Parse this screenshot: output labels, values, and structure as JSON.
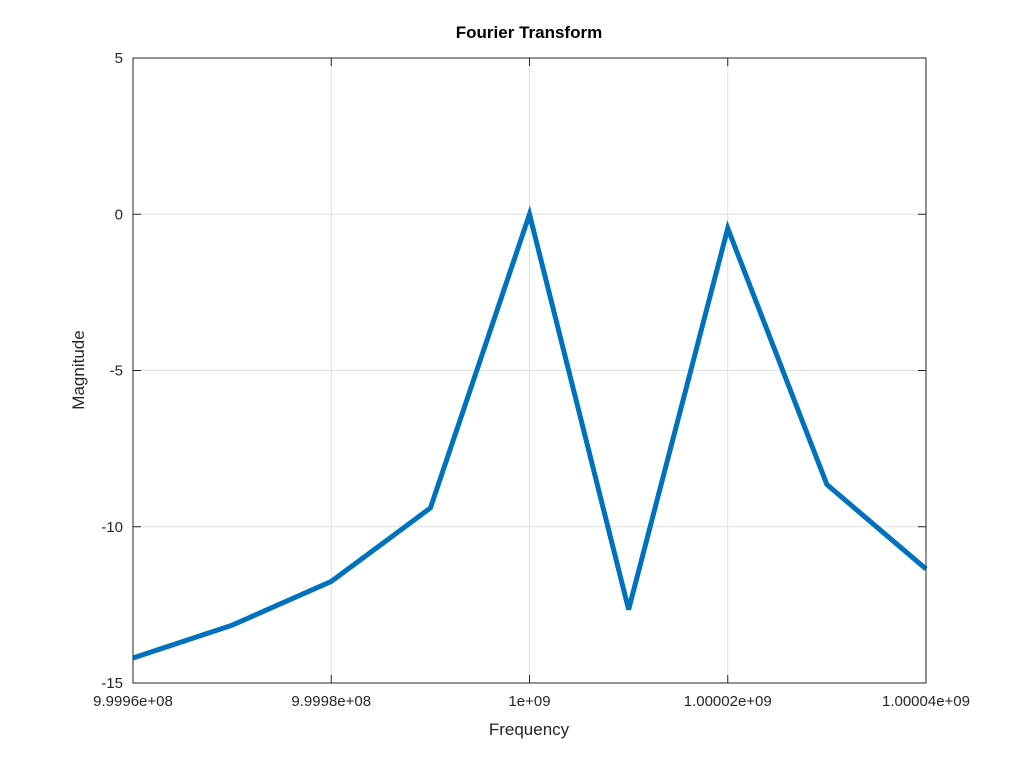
{
  "chart_data": {
    "type": "line",
    "title": "Fourier Transform",
    "xlabel": "Frequency",
    "ylabel": "Magnitude",
    "xlim": [
      999960000,
      1000040000
    ],
    "ylim": [
      -15,
      5
    ],
    "xticks": [
      999960000,
      999980000,
      1000000000,
      1000020000,
      1000040000
    ],
    "xtick_labels": [
      "9.9996e+08",
      "9.9998e+08",
      "1e+09",
      "1.00002e+09",
      "1.00004e+09"
    ],
    "yticks": [
      -15,
      -10,
      -5,
      0,
      5
    ],
    "ytick_labels": [
      "-15",
      "-10",
      "-5",
      "0",
      "5"
    ],
    "grid": true,
    "series": [
      {
        "color": "#0072BD",
        "x": [
          999960000,
          999970000,
          999980000,
          999990000,
          1000000000,
          1000010000,
          1000020000,
          1000030000,
          1000040000
        ],
        "y": [
          -14.2,
          -13.15,
          -11.75,
          -9.4,
          0,
          -12.65,
          -0.45,
          -8.65,
          -11.35
        ]
      }
    ]
  }
}
